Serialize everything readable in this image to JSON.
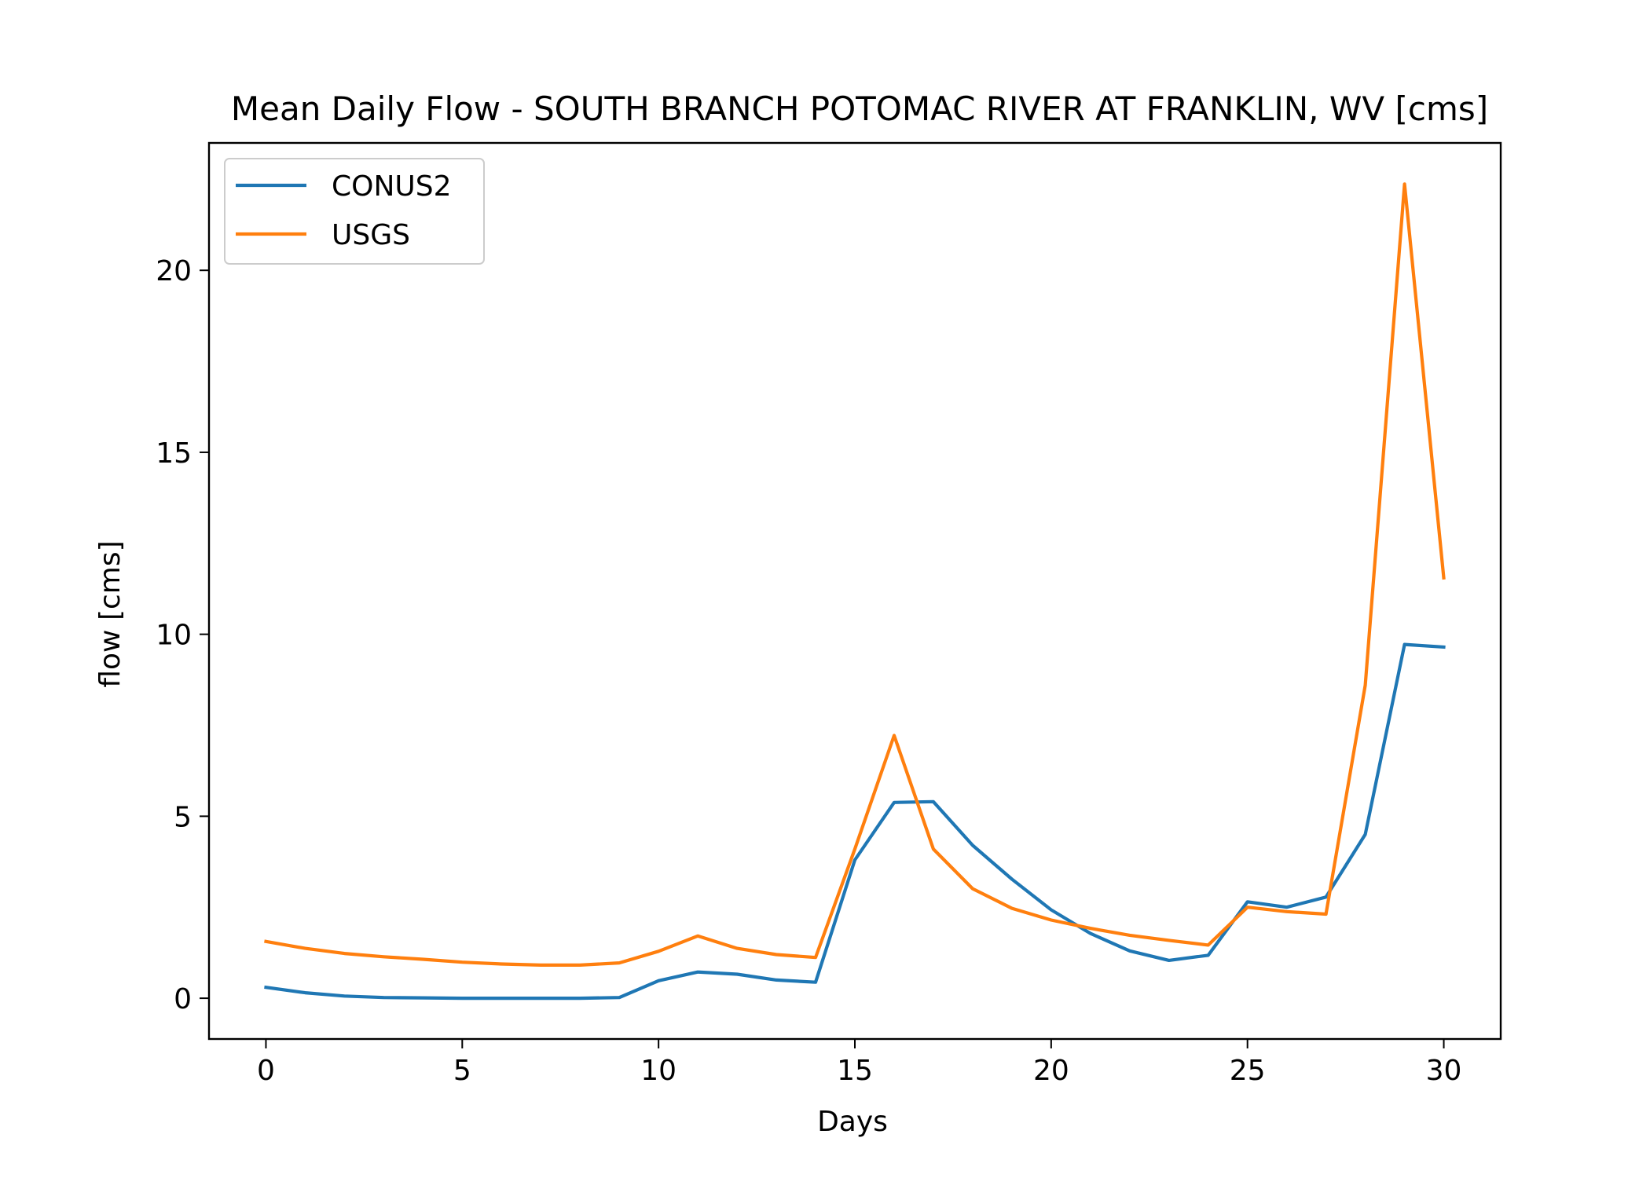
{
  "chart_data": {
    "type": "line",
    "title": "Mean Daily Flow - SOUTH BRANCH POTOMAC RIVER AT FRANKLIN, WV [cms]",
    "xlabel": "Days",
    "ylabel": "flow [cms]",
    "xlim": [
      -1.45,
      31.45
    ],
    "ylim": [
      -1.12,
      23.5
    ],
    "xticks": [
      0,
      5,
      10,
      15,
      20,
      25,
      30
    ],
    "yticks": [
      0,
      5,
      10,
      15,
      20
    ],
    "grid": false,
    "legend_position": "upper-left",
    "x": [
      0,
      1,
      2,
      3,
      4,
      5,
      6,
      7,
      8,
      9,
      10,
      11,
      12,
      13,
      14,
      15,
      16,
      17,
      18,
      19,
      20,
      21,
      22,
      23,
      24,
      25,
      26,
      27,
      28,
      29,
      30
    ],
    "series": [
      {
        "name": "CONUS2",
        "color": "#1f77b4",
        "values": [
          0.3,
          0.15,
          0.06,
          0.02,
          0.01,
          0.0,
          0.0,
          0.0,
          0.0,
          0.02,
          0.48,
          0.72,
          0.66,
          0.5,
          0.44,
          3.8,
          5.38,
          5.4,
          4.2,
          3.27,
          2.43,
          1.78,
          1.3,
          1.04,
          1.18,
          2.65,
          2.5,
          2.78,
          4.5,
          9.72,
          9.65
        ]
      },
      {
        "name": "USGS",
        "color": "#ff7f0e",
        "values": [
          1.56,
          1.37,
          1.23,
          1.14,
          1.07,
          0.99,
          0.94,
          0.91,
          0.91,
          0.97,
          1.29,
          1.71,
          1.37,
          1.2,
          1.12,
          4.1,
          7.22,
          4.1,
          3.01,
          2.47,
          2.15,
          1.92,
          1.73,
          1.59,
          1.46,
          2.5,
          2.38,
          2.31,
          8.6,
          22.37,
          11.55
        ]
      }
    ]
  }
}
